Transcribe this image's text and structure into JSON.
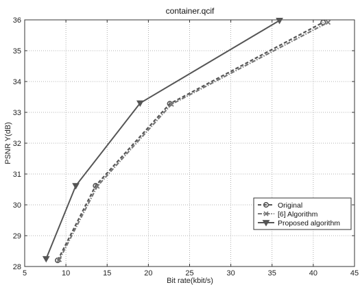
{
  "chart_data": {
    "type": "line",
    "title": "container.qcif",
    "xlabel": "Bit rate(kbit/s)",
    "ylabel": "PSNR Y(dB)",
    "xlim": [
      5,
      45
    ],
    "ylim": [
      28,
      36
    ],
    "xticks": [
      "5",
      "10",
      "15",
      "20",
      "25",
      "30",
      "35",
      "40",
      "45"
    ],
    "yticks": [
      "28",
      "29",
      "30",
      "31",
      "32",
      "33",
      "34",
      "35",
      "36"
    ],
    "grid": true,
    "legend_position": "bottom-right",
    "series": [
      {
        "name": "Original",
        "marker": "circle",
        "line": "dashed",
        "color": "#555555",
        "x": [
          9.0,
          13.6,
          22.6,
          41.2
        ],
        "y": [
          28.2,
          30.62,
          33.28,
          35.92
        ]
      },
      {
        "name": "[6] Algorithm",
        "marker": "x",
        "line": "dashdot",
        "color": "#777777",
        "x": [
          9.2,
          13.8,
          22.8,
          41.8
        ],
        "y": [
          28.22,
          30.6,
          33.26,
          35.92
        ]
      },
      {
        "name": "Proposed algorithm",
        "marker": "triangle-down",
        "line": "solid",
        "color": "#555555",
        "x": [
          7.6,
          11.2,
          19.0,
          35.9
        ],
        "y": [
          28.25,
          30.62,
          33.3,
          35.98
        ]
      }
    ]
  }
}
